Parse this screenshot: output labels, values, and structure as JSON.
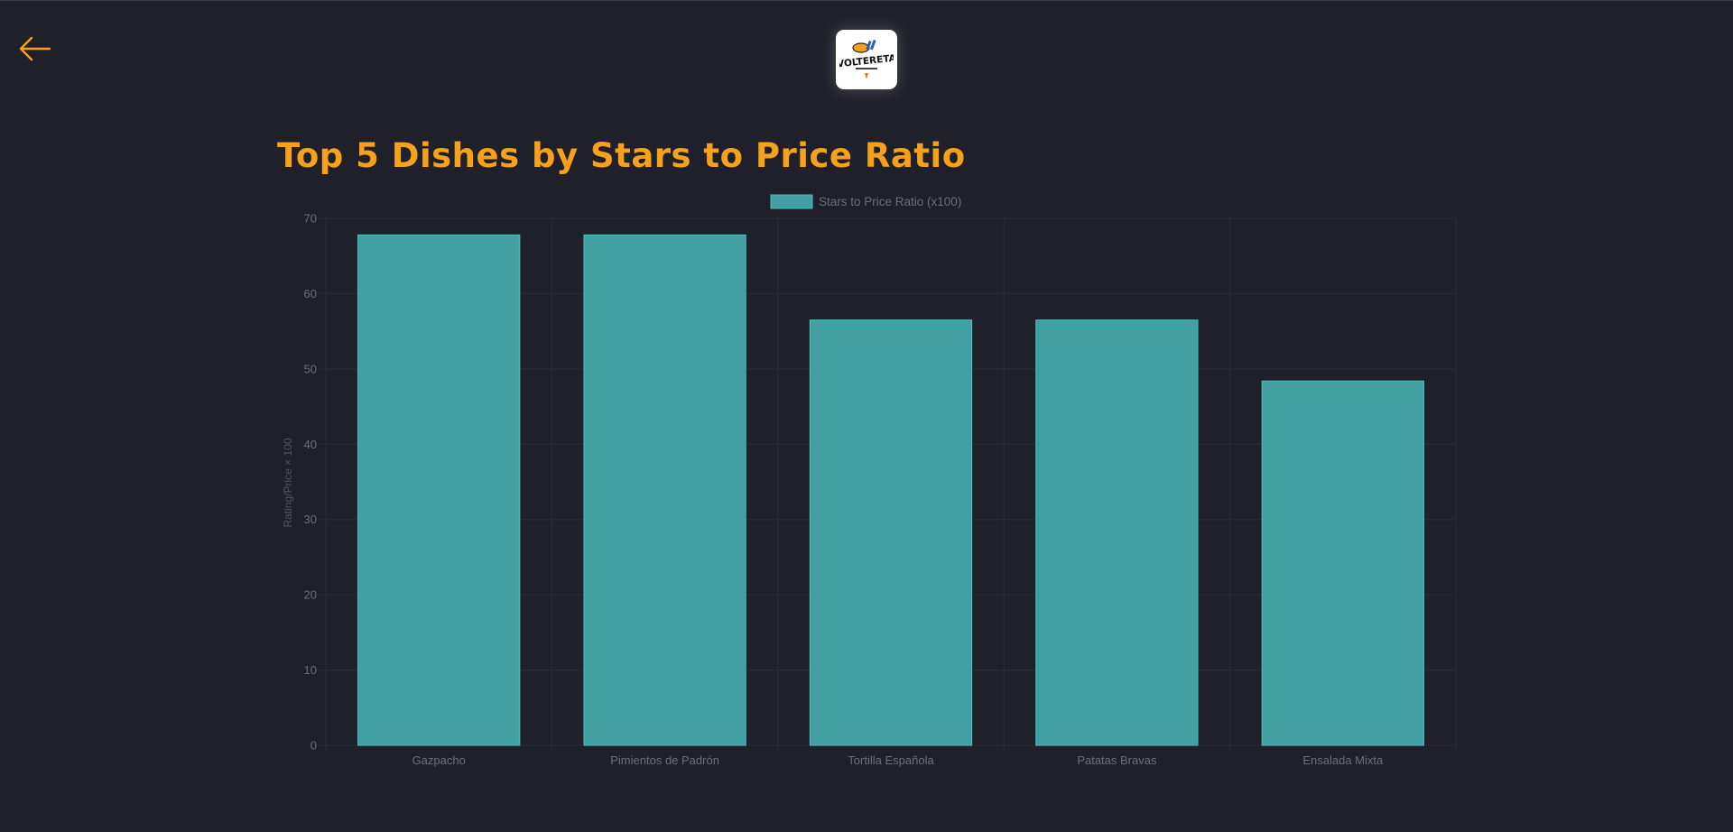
{
  "colors": {
    "background": "#20202a",
    "accent": "#f5a11c",
    "bar_fill": "#42a0a1",
    "bar_border": "#4bc0c0",
    "grid": "#2d2d36",
    "tick_text": "#6e6e78"
  },
  "nav": {
    "back_icon": "arrow-left-icon"
  },
  "logo": {
    "brand_text": "VOLTERETA",
    "icon": "restaurant-logo"
  },
  "chart_data": {
    "type": "bar",
    "title": "Top 5 Dishes by Stars to Price Ratio",
    "categories": [
      "Gazpacho",
      "Pimientos de Padrón",
      "Tortilla Española",
      "Patatas Bravas",
      "Ensalada Mixta"
    ],
    "series": [
      {
        "name": "Stars to Price Ratio (x100)",
        "values": [
          67.8,
          67.8,
          56.5,
          56.5,
          48.4
        ]
      }
    ],
    "xlabel": "",
    "ylabel": "Rating/Price × 100",
    "ylim": [
      0,
      70
    ],
    "yticks": [
      0,
      10,
      20,
      30,
      40,
      50,
      60,
      70
    ],
    "grid": true,
    "legend": "top-center"
  }
}
